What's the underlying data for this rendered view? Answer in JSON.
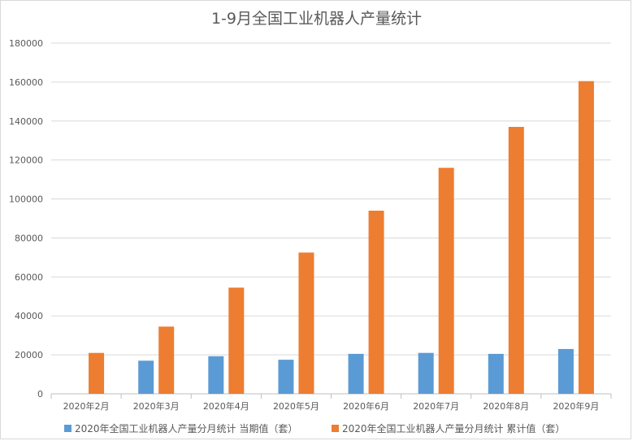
{
  "chart_data": {
    "type": "bar",
    "title": "1-9月全国工业机器人产量统计",
    "xlabel": "",
    "ylabel": "",
    "categories": [
      "2020年2月",
      "2020年3月",
      "2020年4月",
      "2020年5月",
      "2020年6月",
      "2020年7月",
      "2020年8月",
      "2020年9月"
    ],
    "series": [
      {
        "name": "2020年全国工业机器人产量分月统计 当期值（套）",
        "color": "#5b9bd5",
        "values": [
          null,
          17000,
          19300,
          17500,
          20500,
          21000,
          20500,
          23000
        ]
      },
      {
        "name": "2020年全国工业机器人产量分月统计 累计值（套）",
        "color": "#ed7d31",
        "values": [
          21000,
          34500,
          54500,
          72500,
          94000,
          116000,
          137000,
          160500
        ]
      }
    ],
    "ylim": [
      0,
      180000
    ],
    "yticks": [
      0,
      20000,
      40000,
      60000,
      80000,
      100000,
      120000,
      140000,
      160000,
      180000
    ],
    "grid": true,
    "legend_position": "bottom"
  }
}
